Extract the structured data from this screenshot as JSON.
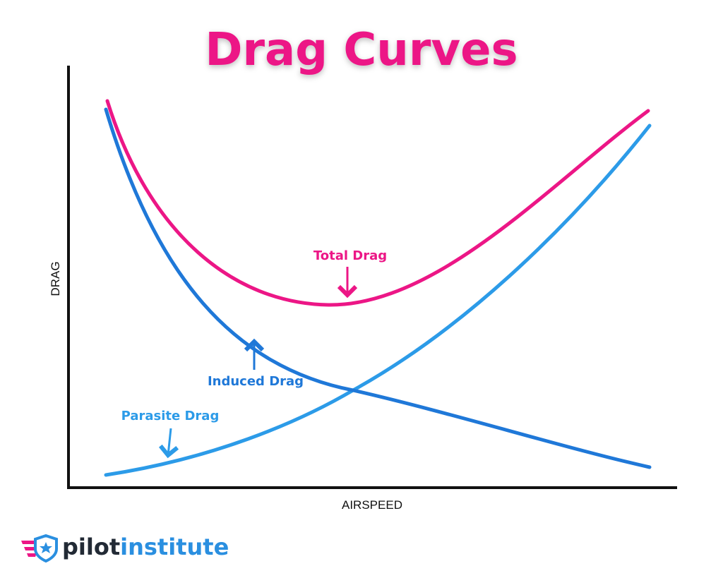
{
  "title": "Drag Curves",
  "axes": {
    "y_label": "DRAG",
    "x_label": "AIRSPEED"
  },
  "curves": [
    {
      "label": "Total Drag"
    },
    {
      "label": "Induced Drag"
    },
    {
      "label": "Parasite Drag"
    }
  ],
  "logo": {
    "first": "pilot",
    "second": "institute"
  }
}
